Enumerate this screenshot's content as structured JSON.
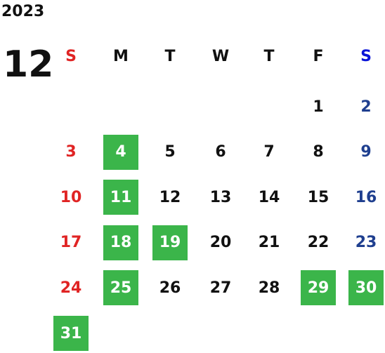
{
  "calendar": {
    "year": "2023",
    "month": "12",
    "weekdays": [
      "S",
      "M",
      "T",
      "W",
      "T",
      "F",
      "S"
    ],
    "weeks": [
      [
        null,
        null,
        null,
        null,
        null,
        1,
        2
      ],
      [
        3,
        4,
        5,
        6,
        7,
        8,
        9
      ],
      [
        10,
        11,
        12,
        13,
        14,
        15,
        16
      ],
      [
        17,
        18,
        19,
        20,
        21,
        22,
        23
      ],
      [
        24,
        25,
        26,
        27,
        28,
        29,
        30
      ],
      [
        31,
        null,
        null,
        null,
        null,
        null,
        null
      ]
    ],
    "highlighted_days": [
      4,
      11,
      18,
      19,
      25,
      29,
      30,
      31
    ]
  }
}
